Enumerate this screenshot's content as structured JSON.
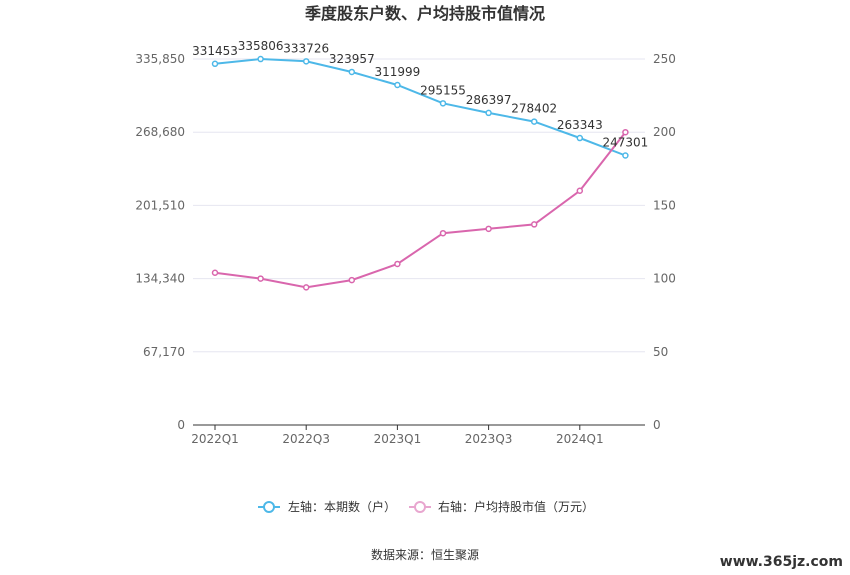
{
  "chart_data": {
    "type": "line",
    "title": "季度股东户数、户均持股市值情况",
    "categories": [
      "2022Q1",
      "2022Q2",
      "2022Q3",
      "2022Q4",
      "2023Q1",
      "2023Q2",
      "2023Q3",
      "2023Q4",
      "2024Q1",
      "2024Q2"
    ],
    "x_tick_labels": [
      "2022Q1",
      "2022Q3",
      "2023Q1",
      "2023Q3",
      "2024Q1"
    ],
    "left_axis": {
      "ylim": [
        0,
        335850
      ],
      "ticks": [
        "0",
        "67,170",
        "134,340",
        "201,510",
        "268,680",
        "335,850"
      ]
    },
    "right_axis": {
      "ylim": [
        0,
        250
      ],
      "ticks": [
        "0",
        "50",
        "100",
        "150",
        "200",
        "250"
      ]
    },
    "series": [
      {
        "name": "左轴：本期数（户）",
        "axis": "left",
        "color": "#4db8e8",
        "values": [
          331453,
          335806,
          333726,
          323957,
          311999,
          295155,
          286397,
          278402,
          263343,
          247301
        ],
        "labels": [
          "331453",
          "335806",
          "333726",
          "323957",
          "311999",
          "295155",
          "286397",
          "278402",
          "263343",
          "247301"
        ]
      },
      {
        "name": "右轴：户均持股市值（万元）",
        "axis": "right",
        "color": "#d966ad",
        "values": [
          104,
          100,
          94,
          99,
          110,
          131,
          134,
          137,
          160,
          200
        ]
      }
    ],
    "grid": true,
    "legend_position": "bottom"
  },
  "source": "数据来源：恒生聚源",
  "watermark": "www.365jz.com"
}
